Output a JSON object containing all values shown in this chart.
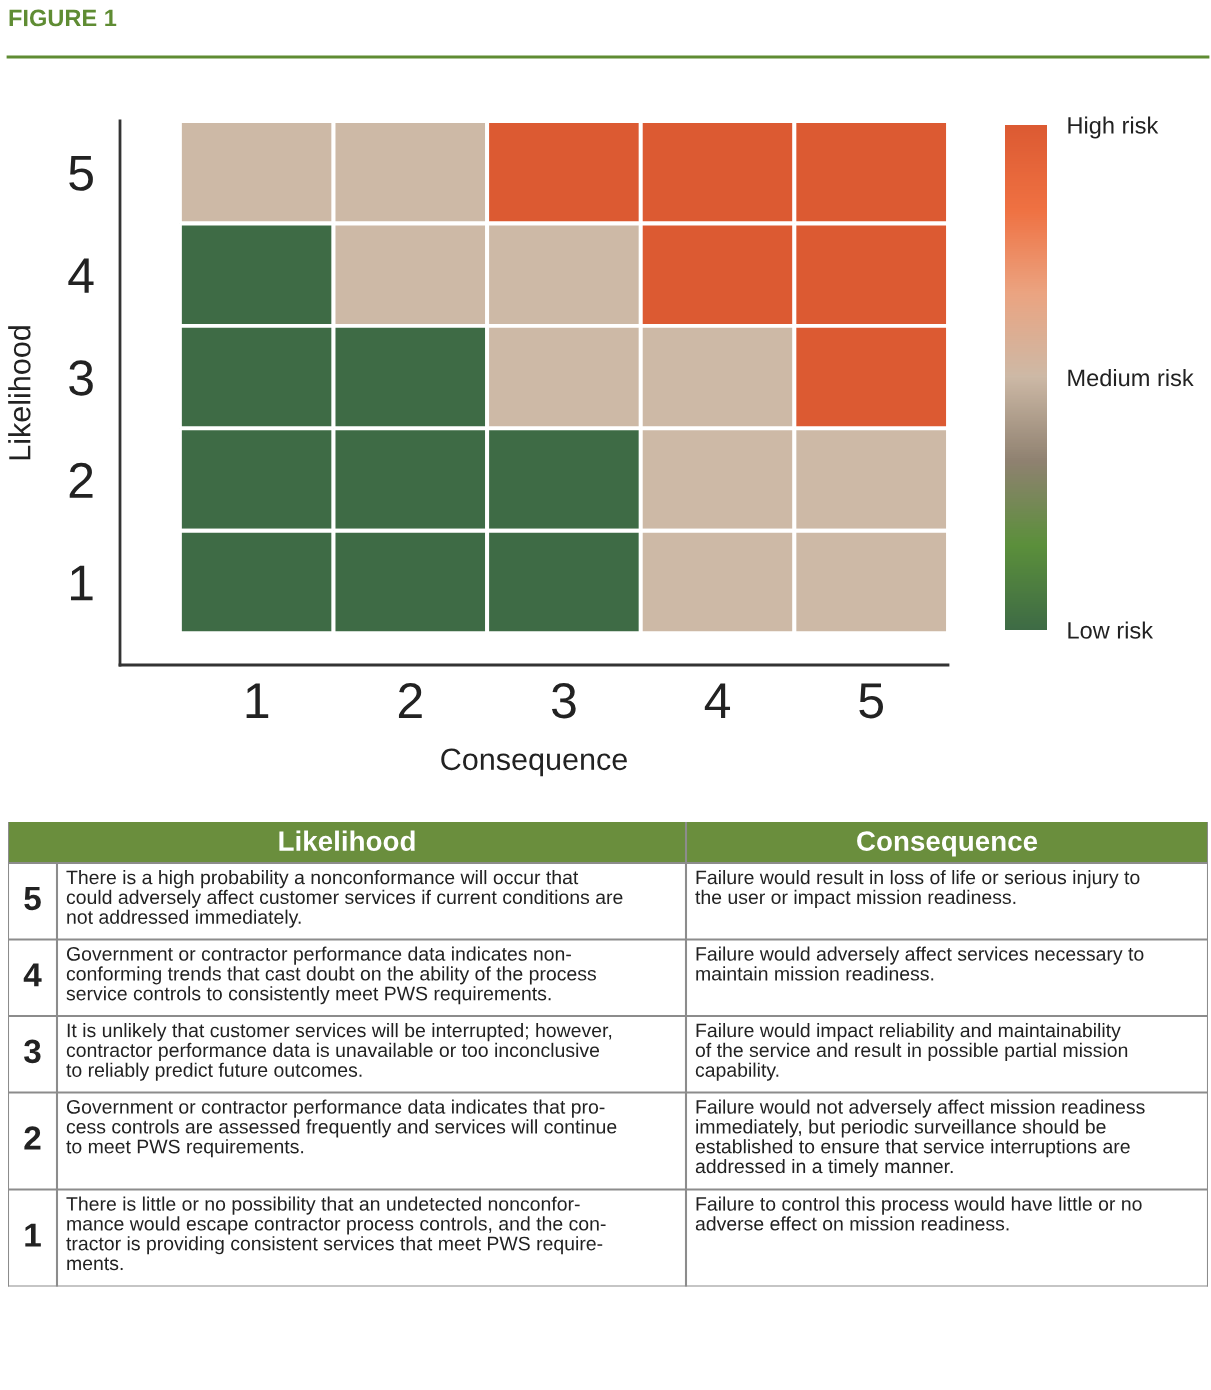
{
  "chart_data": {
    "type": "heatmap",
    "title": "FIGURE 1",
    "xlabel": "Consequence",
    "ylabel": "Likelihood",
    "categories": [
      "1",
      "2",
      "3",
      "4",
      "5"
    ],
    "y_categories": [
      "5",
      "4",
      "3",
      "2",
      "1"
    ],
    "cells": [
      [
        1,
        1,
        2,
        2,
        2
      ],
      [
        0,
        1,
        1,
        2,
        2
      ],
      [
        0,
        0,
        1,
        1,
        2
      ],
      [
        0,
        0,
        0,
        1,
        1
      ],
      [
        0,
        0,
        0,
        1,
        1
      ]
    ],
    "clim": [
      0,
      2
    ],
    "cticks": [
      {
        "value": 0,
        "label": "Low risk"
      },
      {
        "value": 1,
        "label": "Medium risk"
      },
      {
        "value": 2,
        "label": "High risk"
      }
    ],
    "colors": [
      "#3e6b45",
      "#5b8f3b",
      "#8f8170",
      "#cdb9a6",
      "#eba481",
      "#ef7142",
      "#dc5a32"
    ],
    "annotations": [
      "Likelihood",
      "Consequence",
      "5",
      "There is a high probability a nonconformance will occur that\ncould adversely affect customer services if current conditions are\nnot addressed immediately.",
      "Failure would result in loss of life or serious injury to\nthe user or impact mission readiness.",
      "4",
      "Government or contractor performance data indicates non-\nconforming trends that cast doubt on the ability of the process\nservice controls to consistently meet PWS requirements.",
      "Failure would adversely affect services necessary to\nmaintain mission readiness.",
      "3",
      "It is unlikely that customer services will be interrupted; however,\ncontractor performance data is unavailable or too inconclusive\nto reliably predict future outcomes.",
      "Failure would impact reliability and maintainability\nof the service and result in possible partial mission\ncapability.",
      "2",
      "Government or contractor performance data indicates that pro-\ncess controls are assessed frequently and services will continue\nto meet PWS requirements.",
      "Failure would not adversely affect mission readiness\nimmediately, but periodic surveillance should be\nestablished to ensure that service interruptions are\naddressed in a timely manner.",
      "1",
      "There is little or no possibility that an undetected nonconfor-\nmance would escape contractor process controls, and the con-\ntractor is providing consistent services that meet PWS require-\nments.",
      "Failure to control this process would have little or no\nadverse effect on mission readiness."
    ]
  }
}
